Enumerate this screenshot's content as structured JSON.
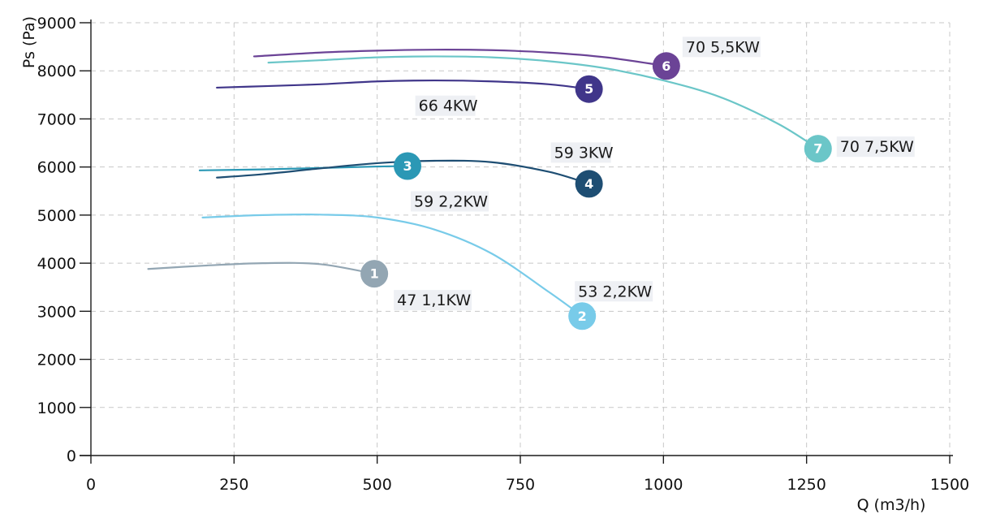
{
  "chart_data": {
    "type": "line",
    "xlabel": "Q (m3/h)",
    "ylabel": "Ps (Pa)",
    "xlim": [
      0,
      1500
    ],
    "ylim": [
      0,
      9000
    ],
    "x_ticks": [
      0,
      250,
      500,
      750,
      1000,
      1250,
      1500
    ],
    "y_ticks": [
      0,
      1000,
      2000,
      3000,
      4000,
      5000,
      6000,
      7000,
      8000,
      9000
    ],
    "grid": true,
    "series": [
      {
        "id": "1",
        "label": "47 1,1KW",
        "color": "#93a6b3",
        "x": [
          100,
          200,
          300,
          400,
          495
        ],
        "y": [
          3880,
          3950,
          4000,
          3980,
          3780
        ]
      },
      {
        "id": "2",
        "label": "53 2,2KW",
        "color": "#78cbe9",
        "x": [
          195,
          300,
          400,
          500,
          600,
          700,
          800,
          858
        ],
        "y": [
          4950,
          5000,
          5010,
          4950,
          4700,
          4200,
          3400,
          2900
        ]
      },
      {
        "id": "3",
        "label": "59 2,2KW",
        "color": "#2b98b5",
        "x": [
          190,
          300,
          400,
          500,
          553
        ],
        "y": [
          5930,
          5950,
          5980,
          6010,
          6020
        ]
      },
      {
        "id": "4",
        "label": "59 3KW",
        "color": "#1e4e73",
        "x": [
          220,
          300,
          400,
          500,
          600,
          700,
          800,
          870
        ],
        "y": [
          5780,
          5850,
          5970,
          6080,
          6130,
          6100,
          5900,
          5650
        ]
      },
      {
        "id": "5",
        "label": "66 4KW",
        "color": "#40368a",
        "x": [
          220,
          300,
          400,
          500,
          600,
          700,
          800,
          870
        ],
        "y": [
          7650,
          7680,
          7720,
          7780,
          7800,
          7780,
          7720,
          7620
        ]
      },
      {
        "id": "6",
        "label": "70 5,5KW",
        "color": "#6b4396",
        "x": [
          285,
          400,
          500,
          600,
          700,
          800,
          900,
          1005
        ],
        "y": [
          8300,
          8380,
          8420,
          8440,
          8430,
          8380,
          8280,
          8100
        ]
      },
      {
        "id": "7",
        "label": "70 7,5KW",
        "color": "#6bc6c8",
        "x": [
          310,
          400,
          500,
          600,
          700,
          800,
          900,
          1000,
          1100,
          1200,
          1270
        ],
        "y": [
          8170,
          8220,
          8280,
          8300,
          8280,
          8200,
          8050,
          7800,
          7450,
          6900,
          6380
        ]
      }
    ]
  }
}
